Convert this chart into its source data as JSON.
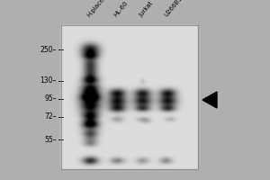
{
  "fig_w": 3.0,
  "fig_h": 2.0,
  "dpi": 100,
  "fig_bg": "#aaaaaa",
  "gel_bg_val": 220,
  "outer_bg_val": 175,
  "lane_labels": [
    "H.placenta",
    "HL-60",
    "Jurkat",
    "U266B1"
  ],
  "mw_markers": [
    "250",
    "130",
    "95",
    "72",
    "55"
  ],
  "label_fontsize": 5.0,
  "mw_fontsize": 5.5,
  "arrow_color": "black"
}
